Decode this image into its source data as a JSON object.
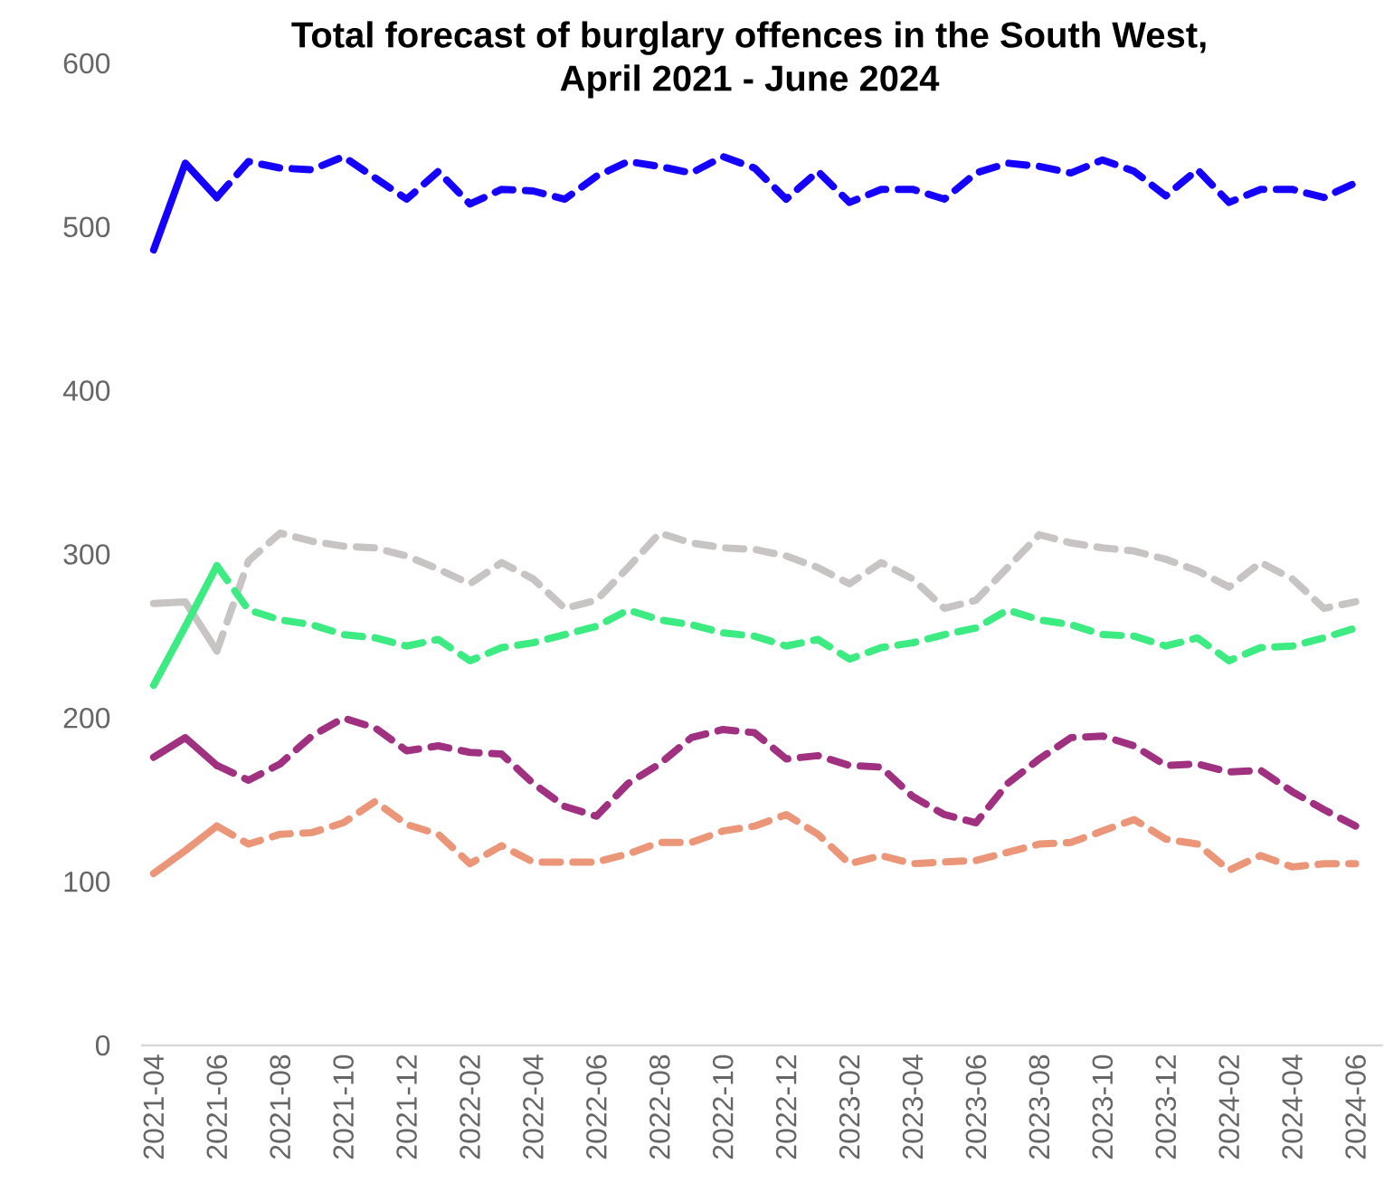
{
  "chart_data": {
    "type": "line",
    "title": "Total forecast of burglary offences in the South West,\nApril 2021 - June 2024",
    "categories": [
      "2021-04",
      null,
      "2021-06",
      null,
      "2021-08",
      null,
      "2021-10",
      null,
      "2021-12",
      null,
      "2022-02",
      null,
      "2022-04",
      null,
      "2022-06",
      null,
      "2022-08",
      null,
      "2022-10",
      null,
      "2022-12",
      null,
      "2023-02",
      null,
      "2023-04",
      null,
      "2023-06",
      null,
      "2023-08",
      null,
      "2023-10",
      null,
      "2023-12",
      null,
      "2024-02",
      null,
      "2024-04",
      null,
      "2024-06"
    ],
    "ylim": [
      0,
      600
    ],
    "yticks": [
      0,
      100,
      200,
      300,
      400,
      500,
      600
    ],
    "marker": "none",
    "series": [
      {
        "color": "#1500ff",
        "line_style": "solid",
        "values": [
          486,
          539,
          518,
          null,
          null,
          null,
          null,
          null,
          null,
          null,
          null,
          null,
          null,
          null,
          null,
          null,
          null,
          null,
          null,
          null,
          null,
          null,
          null,
          null,
          null,
          null,
          null,
          null,
          null,
          null,
          null,
          null,
          null,
          null,
          null,
          null,
          null,
          null,
          null
        ]
      },
      {
        "color": "#1500ff",
        "line_style": "dashed",
        "values": [
          null,
          null,
          518,
          540,
          536,
          535,
          543,
          530,
          517,
          534,
          514,
          523,
          522,
          517,
          531,
          540,
          537,
          533,
          543,
          536,
          517,
          534,
          515,
          523,
          523,
          517,
          533,
          539,
          537,
          533,
          541,
          534,
          519,
          535,
          515,
          523,
          523,
          518,
          527
        ]
      },
      {
        "color": "#c8c4c4",
        "line_style": "solid",
        "values": [
          270,
          271,
          241,
          null,
          null,
          null,
          null,
          null,
          null,
          null,
          null,
          null,
          null,
          null,
          null,
          null,
          null,
          null,
          null,
          null,
          null,
          null,
          null,
          null,
          null,
          null,
          null,
          null,
          null,
          null,
          null,
          null,
          null,
          null,
          null,
          null,
          null,
          null,
          null
        ]
      },
      {
        "color": "#c8c4c4",
        "line_style": "dashed",
        "values": [
          null,
          null,
          241,
          296,
          313,
          308,
          305,
          304,
          299,
          291,
          282,
          295,
          285,
          267,
          272,
          292,
          313,
          307,
          304,
          303,
          299,
          292,
          282,
          295,
          285,
          267,
          272,
          292,
          312,
          307,
          304,
          302,
          297,
          290,
          280,
          295,
          285,
          267,
          271
        ]
      },
      {
        "color": "#3ceb82",
        "line_style": "solid",
        "values": [
          220,
          256,
          293,
          null,
          null,
          null,
          null,
          null,
          null,
          null,
          null,
          null,
          null,
          null,
          null,
          null,
          null,
          null,
          null,
          null,
          null,
          null,
          null,
          null,
          null,
          null,
          null,
          null,
          null,
          null,
          null,
          null,
          null,
          null,
          null,
          null,
          null,
          null,
          null
        ]
      },
      {
        "color": "#3ceb82",
        "line_style": "dashed",
        "values": [
          null,
          null,
          293,
          266,
          260,
          257,
          251,
          249,
          244,
          248,
          235,
          243,
          246,
          251,
          256,
          266,
          260,
          257,
          252,
          250,
          244,
          248,
          236,
          243,
          246,
          251,
          255,
          266,
          260,
          257,
          251,
          250,
          244,
          249,
          235,
          243,
          244,
          249,
          255
        ]
      },
      {
        "color": "#a03080",
        "line_style": "solid",
        "values": [
          176,
          188,
          171,
          null,
          null,
          null,
          null,
          null,
          null,
          null,
          null,
          null,
          null,
          null,
          null,
          null,
          null,
          null,
          null,
          null,
          null,
          null,
          null,
          null,
          null,
          null,
          null,
          null,
          null,
          null,
          null,
          null,
          null,
          null,
          null,
          null,
          null,
          null,
          null
        ]
      },
      {
        "color": "#a03080",
        "line_style": "dashed",
        "values": [
          null,
          null,
          171,
          162,
          172,
          189,
          200,
          194,
          180,
          183,
          179,
          178,
          160,
          146,
          140,
          160,
          172,
          188,
          193,
          191,
          175,
          177,
          171,
          170,
          152,
          141,
          136,
          160,
          175,
          188,
          189,
          183,
          171,
          172,
          167,
          168,
          155,
          144,
          134
        ]
      },
      {
        "color": "#eb9678",
        "line_style": "solid",
        "values": [
          105,
          119,
          134,
          null,
          null,
          null,
          null,
          null,
          null,
          null,
          null,
          null,
          null,
          null,
          null,
          null,
          null,
          null,
          null,
          null,
          null,
          null,
          null,
          null,
          null,
          null,
          null,
          null,
          null,
          null,
          null,
          null,
          null,
          null,
          null,
          null,
          null,
          null,
          null
        ]
      },
      {
        "color": "#eb9678",
        "line_style": "dashed",
        "values": [
          null,
          null,
          134,
          123,
          129,
          130,
          136,
          149,
          135,
          129,
          111,
          122,
          112,
          112,
          112,
          117,
          124,
          124,
          131,
          134,
          141,
          129,
          111,
          116,
          111,
          112,
          113,
          118,
          123,
          124,
          131,
          138,
          126,
          123,
          107,
          116,
          109,
          111,
          111
        ]
      }
    ]
  }
}
